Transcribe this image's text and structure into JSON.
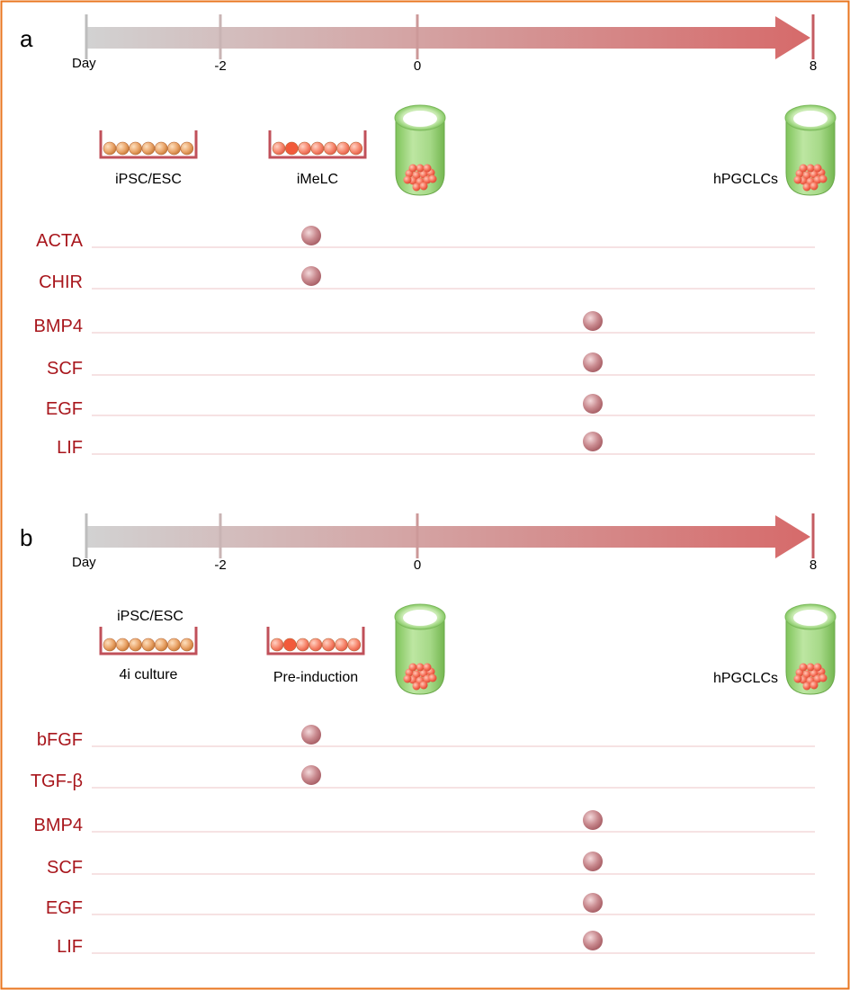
{
  "colors": {
    "frame": "#e9761f",
    "arrow_start": "#d2d2d2",
    "arrow_end": "#d66a6a",
    "factor_text": "#a8161c",
    "dish": "#c0505a",
    "bead": "#e7a36a",
    "dot": "#c07a80",
    "tube": "#9fd67e"
  },
  "panels": [
    {
      "letter": "a",
      "timeline": {
        "start_label": "Day",
        "ticks": [
          "-2",
          "0",
          "8"
        ]
      },
      "stages": [
        {
          "label": "iPSC/ESC",
          "label2": ""
        },
        {
          "label": "iMeLC",
          "label2": ""
        },
        {
          "label": "hPGCLCs",
          "label2": ""
        }
      ],
      "factors": [
        "ACTA",
        "CHIR",
        "BMP4",
        "SCF",
        "EGF",
        "LIF"
      ]
    },
    {
      "letter": "b",
      "timeline": {
        "start_label": "Day",
        "ticks": [
          "-2",
          "0",
          "8"
        ]
      },
      "stages": [
        {
          "label": "iPSC/ESC",
          "label2": "4i culture"
        },
        {
          "label": "Pre-induction",
          "label2": ""
        },
        {
          "label": "hPGCLCs",
          "label2": ""
        }
      ],
      "factors": [
        "bFGF",
        "TGF-β",
        "BMP4",
        "SCF",
        "EGF",
        "LIF"
      ]
    }
  ]
}
